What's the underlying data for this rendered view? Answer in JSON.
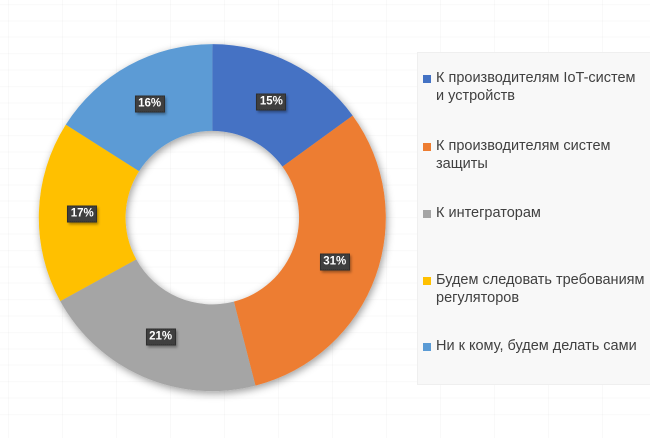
{
  "chart_data": {
    "type": "pie",
    "subtype": "donut",
    "title": "",
    "categories": [
      "К производителям IoT-систем и устройств",
      "К производителям систем защиты",
      "К интеграторам",
      "Будем следовать требованиям регуляторов",
      "Ни к кому, будем делать сами"
    ],
    "values": [
      15,
      31,
      21,
      17,
      16
    ],
    "data_labels": [
      "15%",
      "31%",
      "21%",
      "17%",
      "16%"
    ],
    "colors": [
      "#4472C4",
      "#ED7D31",
      "#A5A5A5",
      "#FFC000",
      "#5B9BD5"
    ],
    "hole_ratio": 0.5,
    "start_angle_deg": 0,
    "direction": "clockwise",
    "legend_position": "right",
    "data_label_style": {
      "background": "#3e3e3e",
      "text_color": "#ffffff"
    }
  }
}
